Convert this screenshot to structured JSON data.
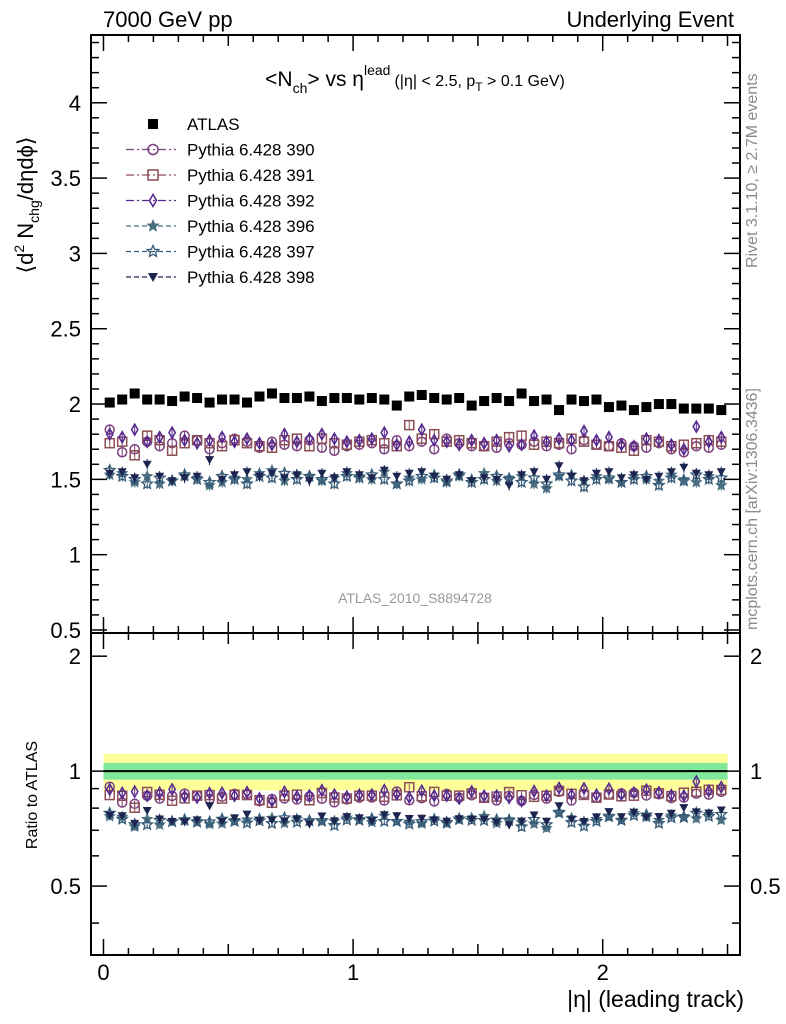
{
  "header": {
    "left": "7000 GeV pp",
    "right": "Underlying Event"
  },
  "side": {
    "rivet": "Rivet 3.1.10, ≥ 2.7M events",
    "mcplots": "mcplots.cern.ch [arXiv:1306.3436]"
  },
  "chart_data": {
    "type": "scatter",
    "title": "<N_ch> vs η^lead (|η| < 2.5, p_T > 0.1 GeV)",
    "title_parts": {
      "main": "<N",
      "main_sub": "ch",
      "mid": "> vs η",
      "mid_sup": "lead",
      "tail1": "(|η| < 2.5, p",
      "tail_sub": "T",
      "tail2": " > 0.1 GeV)"
    },
    "ylabel_parts": {
      "p1": "⟨d",
      "sup": "2",
      "p2": " N",
      "sub": "chg",
      "p3": "/dηdϕ⟩"
    },
    "ratio_ylabel": "Ratio to ATLAS",
    "xlabel": "|η| (leading track)",
    "watermark": "ATLAS_2010_S8894728",
    "xlim": [
      -0.05,
      2.55
    ],
    "ylim": [
      0.48,
      4.45
    ],
    "ratio_ylim": [
      0.33,
      2.3
    ],
    "main_yticks": [
      "0.5",
      "1",
      "1.5",
      "2",
      "2.5",
      "3",
      "3.5",
      "4"
    ],
    "ratio_yticks": [
      "0.5",
      "1",
      "2"
    ],
    "xticks": [
      "0",
      "1",
      "2"
    ],
    "x": [
      0.025,
      0.075,
      0.125,
      0.175,
      0.225,
      0.275,
      0.325,
      0.375,
      0.425,
      0.475,
      0.525,
      0.575,
      0.625,
      0.675,
      0.725,
      0.775,
      0.825,
      0.875,
      0.925,
      0.975,
      1.025,
      1.075,
      1.125,
      1.175,
      1.225,
      1.275,
      1.325,
      1.375,
      1.425,
      1.475,
      1.525,
      1.575,
      1.625,
      1.675,
      1.725,
      1.775,
      1.825,
      1.875,
      1.925,
      1.975,
      2.025,
      2.075,
      2.125,
      2.175,
      2.225,
      2.275,
      2.325,
      2.375,
      2.425,
      2.475
    ],
    "series": [
      {
        "name": "ATLAS",
        "color": "#000000",
        "marker": "square-filled",
        "values": [
          2.01,
          2.03,
          2.07,
          2.03,
          2.03,
          2.02,
          2.05,
          2.04,
          2.01,
          2.03,
          2.03,
          2.01,
          2.05,
          2.07,
          2.04,
          2.04,
          2.05,
          2.02,
          2.04,
          2.04,
          2.03,
          2.04,
          2.03,
          1.99,
          2.05,
          2.06,
          2.04,
          2.03,
          2.04,
          1.99,
          2.02,
          2.04,
          2.02,
          2.07,
          2.02,
          2.03,
          1.96,
          2.03,
          2.02,
          2.03,
          1.98,
          1.99,
          1.96,
          1.98,
          2.0,
          2.0,
          1.97,
          1.97,
          1.97,
          1.96
        ]
      },
      {
        "name": "Pythia 6.428 390",
        "color": "#7b3e7e",
        "marker": "circle-open",
        "dash": "8,3,2,3",
        "values": [
          1.83,
          1.68,
          1.7,
          1.75,
          1.72,
          1.74,
          1.79,
          1.76,
          1.7,
          1.74,
          1.77,
          1.75,
          1.71,
          1.75,
          1.73,
          1.72,
          1.76,
          1.71,
          1.69,
          1.72,
          1.73,
          1.74,
          1.7,
          1.76,
          1.72,
          1.75,
          1.7,
          1.77,
          1.74,
          1.72,
          1.72,
          1.71,
          1.74,
          1.73,
          1.75,
          1.72,
          1.73,
          1.7,
          1.76,
          1.73,
          1.72,
          1.74,
          1.72,
          1.71,
          1.74,
          1.7,
          1.68,
          1.72,
          1.71,
          1.73
        ]
      },
      {
        "name": "Pythia 6.428 391",
        "color": "#8c4f55",
        "marker": "square-open",
        "dash": "8,3,2,3",
        "values": [
          1.74,
          1.75,
          1.66,
          1.79,
          1.76,
          1.69,
          1.74,
          1.76,
          1.74,
          1.72,
          1.76,
          1.74,
          1.72,
          1.71,
          1.76,
          1.77,
          1.72,
          1.77,
          1.74,
          1.73,
          1.75,
          1.76,
          1.74,
          1.72,
          1.86,
          1.77,
          1.8,
          1.75,
          1.76,
          1.74,
          1.72,
          1.75,
          1.78,
          1.79,
          1.73,
          1.75,
          1.74,
          1.77,
          1.75,
          1.73,
          1.72,
          1.71,
          1.69,
          1.76,
          1.75,
          1.72,
          1.73,
          1.74,
          1.76,
          1.75
        ]
      },
      {
        "name": "Pythia 6.428 392",
        "color": "#54278f",
        "marker": "diamond-open",
        "dash": "8,3,2,3",
        "values": [
          1.8,
          1.78,
          1.83,
          1.75,
          1.78,
          1.81,
          1.76,
          1.74,
          1.76,
          1.78,
          1.75,
          1.77,
          1.74,
          1.73,
          1.8,
          1.75,
          1.77,
          1.8,
          1.77,
          1.75,
          1.76,
          1.77,
          1.81,
          1.73,
          1.75,
          1.83,
          1.76,
          1.75,
          1.73,
          1.76,
          1.74,
          1.76,
          1.72,
          1.73,
          1.79,
          1.75,
          1.77,
          1.76,
          1.82,
          1.76,
          1.78,
          1.73,
          1.72,
          1.77,
          1.76,
          1.73,
          1.7,
          1.85,
          1.75,
          1.78
        ]
      },
      {
        "name": "Pythia 6.428 396",
        "color": "#4a6f80",
        "marker": "star-filled",
        "dash": "5,3",
        "values": [
          1.53,
          1.54,
          1.48,
          1.52,
          1.47,
          1.49,
          1.52,
          1.51,
          1.46,
          1.48,
          1.51,
          1.5,
          1.54,
          1.56,
          1.49,
          1.53,
          1.52,
          1.49,
          1.51,
          1.54,
          1.52,
          1.5,
          1.55,
          1.47,
          1.51,
          1.5,
          1.53,
          1.48,
          1.52,
          1.5,
          1.54,
          1.49,
          1.51,
          1.52,
          1.47,
          1.44,
          1.52,
          1.53,
          1.49,
          1.52,
          1.5,
          1.48,
          1.52,
          1.5,
          1.49,
          1.53,
          1.5,
          1.48,
          1.52,
          1.46
        ]
      },
      {
        "name": "Pythia 6.428 397",
        "color": "#365a78",
        "marker": "star-open",
        "dash": "5,3",
        "values": [
          1.56,
          1.52,
          1.5,
          1.47,
          1.51,
          1.49,
          1.53,
          1.5,
          1.48,
          1.52,
          1.5,
          1.47,
          1.52,
          1.51,
          1.54,
          1.5,
          1.52,
          1.5,
          1.47,
          1.52,
          1.51,
          1.53,
          1.5,
          1.47,
          1.49,
          1.52,
          1.51,
          1.49,
          1.53,
          1.48,
          1.5,
          1.52,
          1.5,
          1.48,
          1.51,
          1.47,
          1.53,
          1.49,
          1.45,
          1.5,
          1.51,
          1.48,
          1.5,
          1.52,
          1.46,
          1.51,
          1.49,
          1.53,
          1.5,
          1.51
        ]
      },
      {
        "name": "Pythia 6.428 398",
        "color": "#1c2550",
        "marker": "triangle-down-filled",
        "dash": "5,3",
        "values": [
          1.54,
          1.55,
          1.51,
          1.6,
          1.52,
          1.49,
          1.51,
          1.52,
          1.63,
          1.5,
          1.53,
          1.55,
          1.52,
          1.54,
          1.51,
          1.53,
          1.49,
          1.54,
          1.51,
          1.55,
          1.53,
          1.51,
          1.56,
          1.52,
          1.54,
          1.55,
          1.52,
          1.5,
          1.53,
          1.49,
          1.51,
          1.5,
          1.46,
          1.53,
          1.55,
          1.5,
          1.59,
          1.52,
          1.49,
          1.54,
          1.55,
          1.51,
          1.53,
          1.5,
          1.52,
          1.55,
          1.58,
          1.54,
          1.53,
          1.55
        ]
      }
    ],
    "ratio_bands": {
      "green_halfwidth": 0.05,
      "yellow_halfwidth": 0.11,
      "green_color": "#7fe89a",
      "yellow_color": "#ffff99"
    },
    "legend_placement": "top-left",
    "grid": false
  }
}
